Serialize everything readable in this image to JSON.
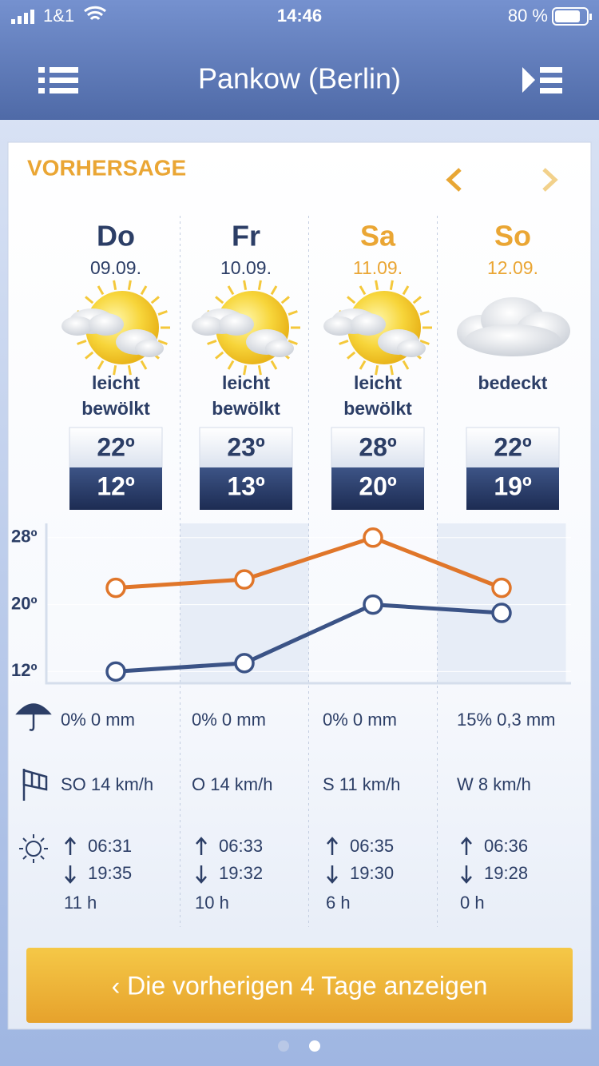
{
  "status_bar": {
    "carrier": "1&1",
    "time": "14:46",
    "battery": "80 %"
  },
  "header": {
    "title": "Pankow (Berlin)"
  },
  "section_title": "VORHERSAGE",
  "days": [
    {
      "name": "Do",
      "date": "09.09.",
      "condition": [
        "leicht",
        "bewölkt"
      ],
      "high": "22º",
      "low": "12º",
      "precipitation": "0% 0 mm",
      "wind": "SO 14 km/h",
      "sunrise": "06:31",
      "sunset": "19:35",
      "sunshine": "11 h",
      "icon": "sun-cloud",
      "weekend": false
    },
    {
      "name": "Fr",
      "date": "10.09.",
      "condition": [
        "leicht",
        "bewölkt"
      ],
      "high": "23º",
      "low": "13º",
      "precipitation": "0% 0 mm",
      "wind": "O 14 km/h",
      "sunrise": "06:33",
      "sunset": "19:32",
      "sunshine": "10 h",
      "icon": "sun-cloud",
      "weekend": false
    },
    {
      "name": "Sa",
      "date": "11.09.",
      "condition": [
        "leicht",
        "bewölkt"
      ],
      "high": "28º",
      "low": "20º",
      "precipitation": "0% 0 mm",
      "wind": "S 11 km/h",
      "sunrise": "06:35",
      "sunset": "19:30",
      "sunshine": "6 h",
      "icon": "sun-cloud",
      "weekend": true
    },
    {
      "name": "So",
      "date": "12.09.",
      "condition": [
        "bedeckt"
      ],
      "high": "22º",
      "low": "19º",
      "precipitation": "15% 0,3 mm",
      "wind": "W 8 km/h",
      "sunrise": "06:36",
      "sunset": "19:28",
      "sunshine": "0 h",
      "icon": "cloud",
      "weekend": true
    }
  ],
  "chart_data": {
    "type": "line",
    "categories": [
      null,
      null,
      null,
      null
    ],
    "series": [
      {
        "color": "#e0762a",
        "values": [
          22,
          23,
          28,
          22
        ]
      },
      {
        "color": "#3b5386",
        "values": [
          12,
          13,
          20,
          19
        ]
      }
    ],
    "ylim": [
      10.6,
      29.7
    ],
    "yticks": [
      {
        "value": 12,
        "label": "12º"
      },
      {
        "value": 20,
        "label": "20º"
      },
      {
        "value": 28,
        "label": "28º"
      }
    ]
  },
  "button": {
    "label": "‹ Die vorherigen 4 Tage anzeigen"
  }
}
